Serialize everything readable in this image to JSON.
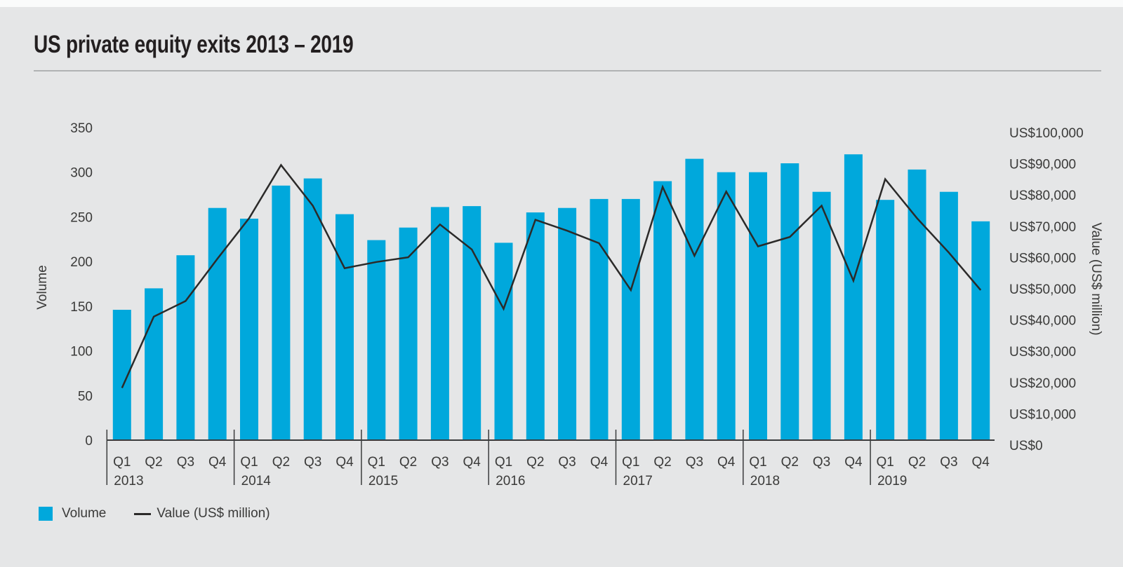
{
  "header": {
    "title": "US private equity exits 2013 – 2019"
  },
  "chart_data": {
    "type": "bar",
    "title": "US private equity exits 2013 – 2019",
    "years": [
      "2013",
      "2014",
      "2015",
      "2016",
      "2017",
      "2018",
      "2019"
    ],
    "quarters_per_year": [
      "Q1",
      "Q2",
      "Q3",
      "Q4"
    ],
    "categories": [
      "2013 Q1",
      "2013 Q2",
      "2013 Q3",
      "2013 Q4",
      "2014 Q1",
      "2014 Q2",
      "2014 Q3",
      "2014 Q4",
      "2015 Q1",
      "2015 Q2",
      "2015 Q3",
      "2015 Q4",
      "2016 Q1",
      "2016 Q2",
      "2016 Q3",
      "2016 Q4",
      "2017 Q1",
      "2017 Q2",
      "2017 Q3",
      "2017 Q4",
      "2018 Q1",
      "2018 Q2",
      "2018 Q3",
      "2018 Q4",
      "2019 Q1",
      "2019 Q2",
      "2019 Q3",
      "2019 Q4"
    ],
    "series": [
      {
        "name": "Volume",
        "type": "bar",
        "axis": "left",
        "values": [
          146,
          170,
          207,
          260,
          248,
          285,
          293,
          253,
          224,
          238,
          261,
          262,
          221,
          255,
          260,
          270,
          270,
          290,
          315,
          300,
          300,
          310,
          278,
          320,
          269,
          303,
          278,
          245
        ]
      },
      {
        "name": "Value (US$ million)",
        "type": "line",
        "axis": "right",
        "values": [
          16700,
          39500,
          44500,
          58000,
          71000,
          88000,
          75000,
          55000,
          57000,
          58500,
          69000,
          61000,
          42000,
          70500,
          67000,
          63000,
          48000,
          81000,
          59000,
          79500,
          62000,
          65000,
          75000,
          51000,
          83500,
          71000,
          60000,
          48000
        ]
      }
    ],
    "left_axis": {
      "label": "Volume",
      "min": 0,
      "max": 350,
      "step": 50
    },
    "right_axis": {
      "label": "Value (US$ million)",
      "min": 0,
      "max": 100000,
      "step": 10000,
      "format_prefix": "US$"
    },
    "legend": [
      {
        "label": "Volume",
        "marker": "square"
      },
      {
        "label": "Value (US$ million)",
        "marker": "line"
      }
    ],
    "grid": "off",
    "legend_position": "bottom-left",
    "colors": {
      "bar": "#00a8dc",
      "line": "#2b2a29",
      "axis": "#3b3c3d",
      "text": "#3a3a39",
      "title": "#231f20",
      "rule": "#b0b2b4",
      "background": "#e5e6e7"
    }
  }
}
